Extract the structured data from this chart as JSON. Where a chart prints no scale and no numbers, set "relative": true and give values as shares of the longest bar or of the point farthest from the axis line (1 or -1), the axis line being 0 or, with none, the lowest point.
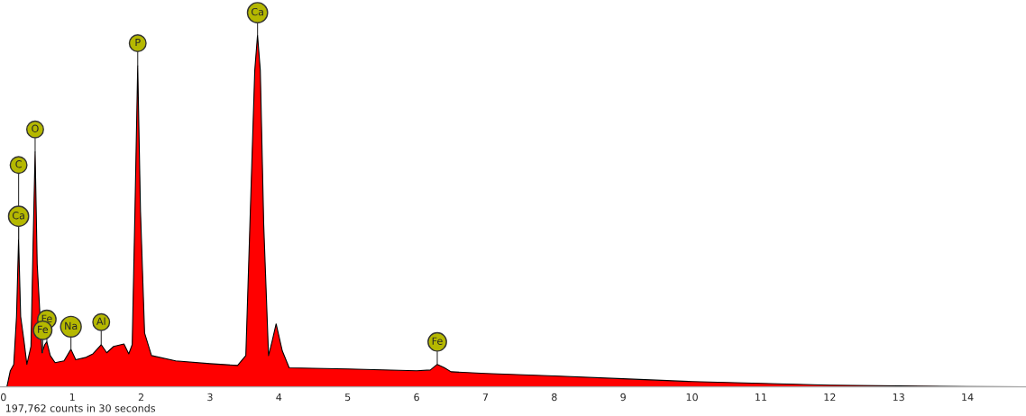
{
  "chart_data": {
    "type": "area",
    "relative": true,
    "color": "#ff0000",
    "x": [
      0.05,
      0.1,
      0.15,
      0.19,
      0.22,
      0.25,
      0.3,
      0.34,
      0.4,
      0.43,
      0.46,
      0.49,
      0.56,
      0.6,
      0.63,
      0.68,
      0.75,
      0.88,
      0.98,
      1.05,
      1.2,
      1.3,
      1.42,
      1.5,
      1.6,
      1.75,
      1.82,
      1.87,
      1.91,
      1.95,
      1.99,
      2.05,
      2.15,
      2.5,
      3.0,
      3.4,
      3.52,
      3.6,
      3.65,
      3.69,
      3.73,
      3.78,
      3.85,
      3.9,
      3.96,
      4.05,
      4.15,
      5,
      6,
      6.2,
      6.3,
      6.4,
      6.5,
      7,
      8,
      9,
      10,
      11,
      12,
      13,
      14,
      14.85
    ],
    "values": [
      0,
      0.046,
      0.064,
      0.2,
      0.421,
      0.2,
      0.128,
      0.064,
      0.115,
      0.4,
      0.668,
      0.35,
      0.097,
      0.12,
      0.128,
      0.089,
      0.069,
      0.074,
      0.107,
      0.077,
      0.084,
      0.094,
      0.12,
      0.097,
      0.115,
      0.122,
      0.094,
      0.12,
      0.5,
      0.913,
      0.5,
      0.153,
      0.089,
      0.074,
      0.066,
      0.061,
      0.089,
      0.59,
      0.9,
      1.0,
      0.9,
      0.46,
      0.089,
      0.128,
      0.179,
      0.102,
      0.054,
      0.051,
      0.046,
      0.048,
      0.064,
      0.055,
      0.043,
      0.038,
      0.031,
      0.023,
      0.015,
      0.01,
      0.005,
      0.003,
      0.001,
      0
    ],
    "xlim": [
      -0.05,
      14.85
    ],
    "xticks": [
      0,
      1,
      2,
      3,
      4,
      5,
      6,
      7,
      8,
      9,
      10,
      11,
      12,
      13,
      14
    ],
    "annotations": [
      {
        "text": "Ca",
        "x": 3.69,
        "y": 1.0
      },
      {
        "text": "P",
        "x": 1.95,
        "y": 0.913
      },
      {
        "text": "O",
        "x": 0.46,
        "y": 0.668
      },
      {
        "text": "Ca",
        "x": 0.22,
        "y": 0.421
      },
      {
        "text": "C",
        "x": 0.22,
        "y": 0.421
      },
      {
        "text": "Fe",
        "x": 0.63,
        "y": 0.128
      },
      {
        "text": "Fe",
        "x": 0.57,
        "y": 0.097
      },
      {
        "text": "Na",
        "x": 0.98,
        "y": 0.107
      },
      {
        "text": "Al",
        "x": 1.42,
        "y": 0.12
      },
      {
        "text": "Fe",
        "x": 6.3,
        "y": 0.064
      },
      "197,762 counts in 30 seconds"
    ]
  }
}
